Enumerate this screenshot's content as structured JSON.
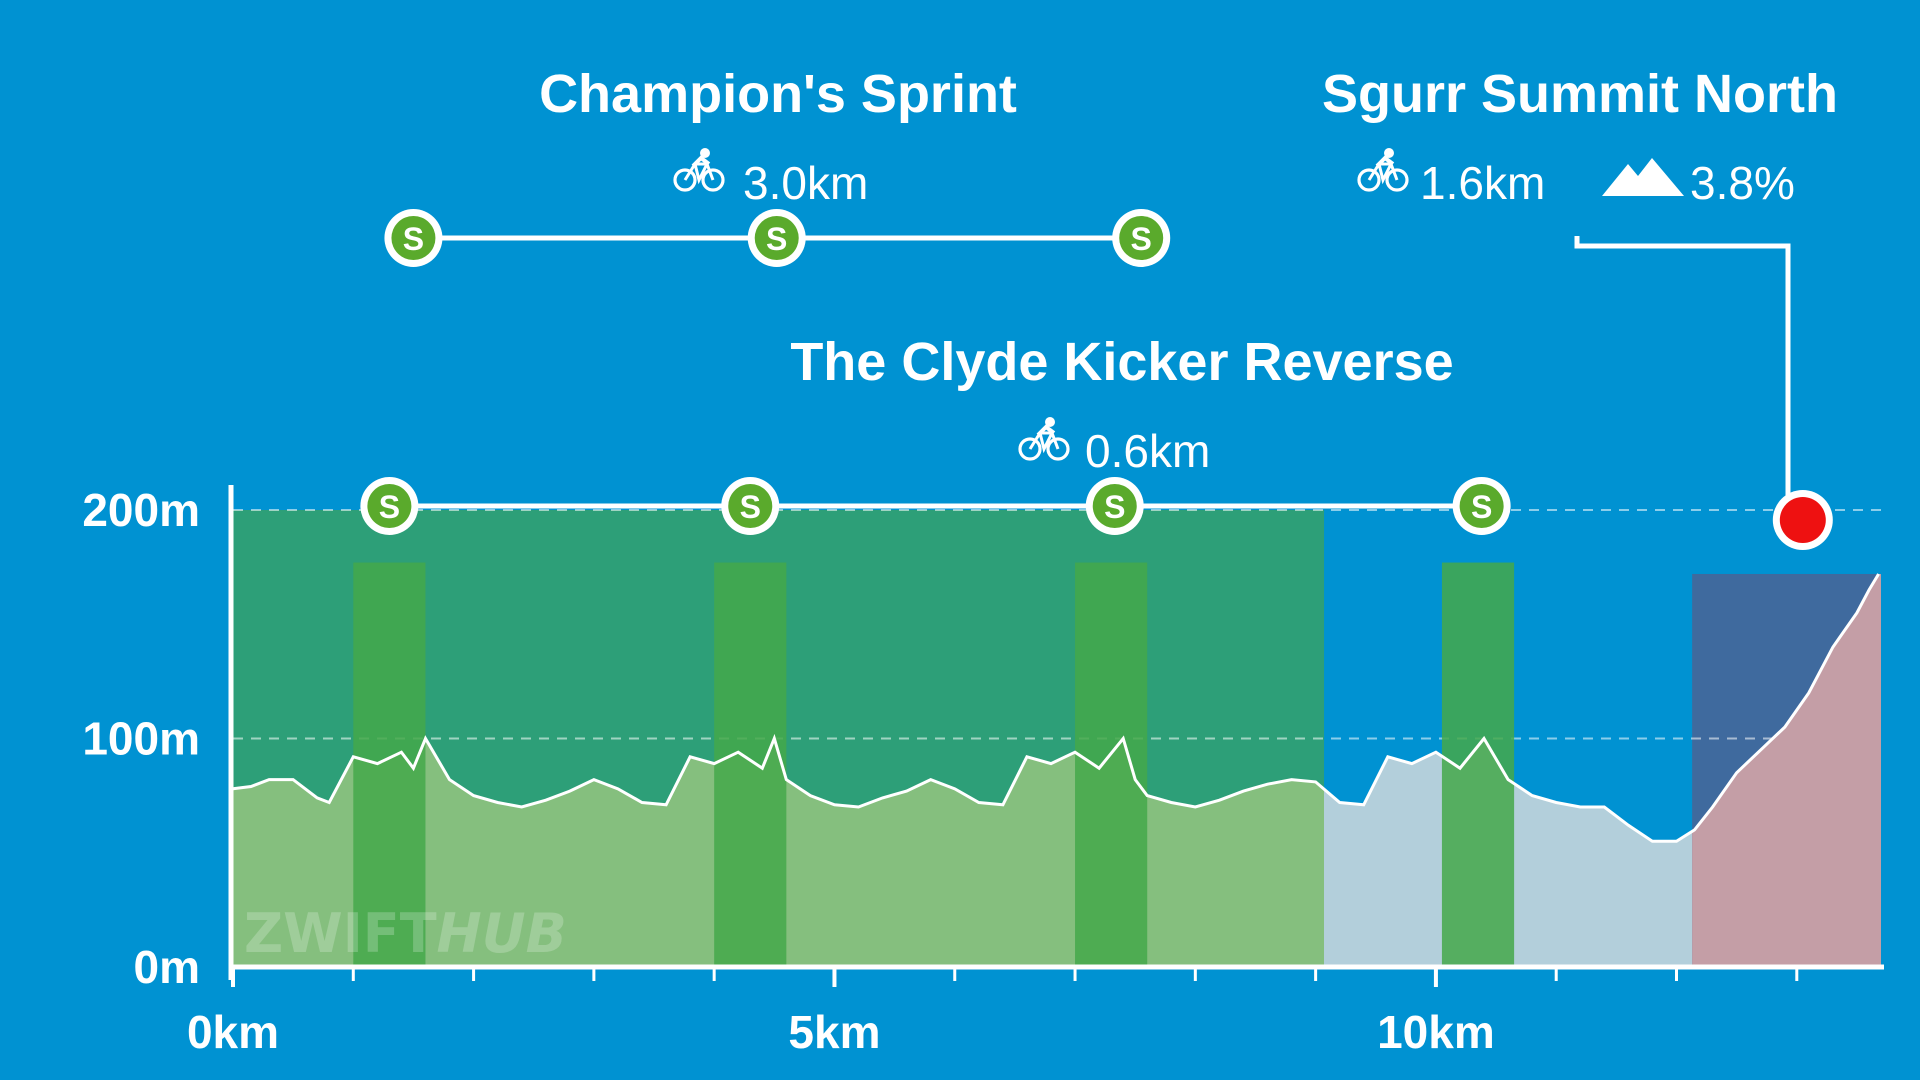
{
  "chart_data": {
    "type": "area",
    "xlabel": "",
    "ylabel": "",
    "xlim": [
      0,
      13.7
    ],
    "ylim": [
      0,
      200
    ],
    "x_ticks": [
      {
        "value": 0,
        "label": "0km"
      },
      {
        "value": 5,
        "label": "5km"
      },
      {
        "value": 10,
        "label": "10km"
      }
    ],
    "y_ticks": [
      {
        "value": 0,
        "label": "0m"
      },
      {
        "value": 100,
        "label": "100m"
      },
      {
        "value": 200,
        "label": "200m"
      }
    ],
    "minor_x_ticks": [
      1,
      2,
      3,
      4,
      6,
      7,
      8,
      9,
      11,
      12,
      13
    ],
    "gridlines_y": [
      100,
      200
    ],
    "elevation_profile": {
      "x": [
        0,
        0.15,
        0.3,
        0.5,
        0.7,
        0.8,
        1.0,
        1.2,
        1.4,
        1.5,
        1.6,
        1.8,
        2.0,
        2.2,
        2.4,
        2.6,
        2.8,
        3.0,
        3.2,
        3.4,
        3.6,
        3.8,
        4.0,
        4.2,
        4.4,
        4.5,
        4.6,
        4.8,
        5.0,
        5.2,
        5.4,
        5.6,
        5.8,
        6.0,
        6.2,
        6.4,
        6.6,
        6.8,
        7.0,
        7.2,
        7.4,
        7.5,
        7.6,
        7.8,
        8.0,
        8.2,
        8.4,
        8.6,
        8.8,
        9.0,
        9.2,
        9.4,
        9.6,
        9.8,
        10.0,
        10.2,
        10.4,
        10.6,
        10.8,
        11.0,
        11.2,
        11.4,
        11.6,
        11.8,
        12.0,
        12.15,
        12.3,
        12.5,
        12.7,
        12.9,
        13.1,
        13.3,
        13.5,
        13.6,
        13.68
      ],
      "y": [
        78,
        79,
        82,
        82,
        74,
        72,
        92,
        89,
        94,
        87,
        100,
        82,
        75,
        72,
        70,
        73,
        77,
        82,
        78,
        72,
        71,
        92,
        89,
        94,
        87,
        100,
        82,
        75,
        71,
        70,
        74,
        77,
        82,
        78,
        72,
        71,
        92,
        89,
        94,
        87,
        100,
        82,
        75,
        72,
        70,
        73,
        77,
        80,
        82,
        81,
        72,
        71,
        92,
        89,
        94,
        87,
        100,
        82,
        75,
        72,
        70,
        70,
        62,
        55,
        55,
        60,
        70,
        85,
        95,
        105,
        120,
        140,
        155,
        165,
        172
      ]
    },
    "zones": [
      {
        "name": "Champion's Sprint",
        "x": [
          0,
          9.07
        ],
        "color": "#2d9f78"
      },
      {
        "name": "Sgurr Summit North",
        "x": [
          12.13,
          13.7
        ],
        "color": "#3f6a9e"
      }
    ],
    "sprint_bands": [
      {
        "x": [
          1.0,
          1.6
        ]
      },
      {
        "x": [
          4.0,
          4.6
        ]
      },
      {
        "x": [
          7.0,
          7.6
        ]
      },
      {
        "x": [
          10.05,
          10.65
        ]
      }
    ],
    "segments": [
      {
        "name": "Champion's Sprint",
        "distance": "3.0km",
        "marker_x": [
          1.5,
          4.52,
          7.55
        ],
        "icon": "bike-icon",
        "marker_label": "S"
      },
      {
        "name": "The Clyde Kicker Reverse",
        "distance": "0.6km",
        "marker_x": [
          1.3,
          4.3,
          7.33,
          10.38
        ],
        "icon": "bike-icon",
        "marker_label": "S"
      },
      {
        "name": "Sgurr Summit North",
        "distance": "1.6km",
        "gradient": "3.8%",
        "marker_x": [
          13.05
        ],
        "icon": "bike-icon",
        "gradient_icon": "mountain-icon",
        "marker_color": "#ee1111"
      }
    ],
    "colors": {
      "background": "#0092d2",
      "profile_green": "#85bf7e",
      "profile_blue": "#b3cfdb",
      "profile_red": "#c49ea6",
      "sprint_band": "#44a84a",
      "sprint_marker": "#5aaa2c",
      "kom_marker": "#ee1111"
    }
  },
  "watermark": {
    "text_a": "ZWIFT",
    "text_b": "HUB"
  }
}
